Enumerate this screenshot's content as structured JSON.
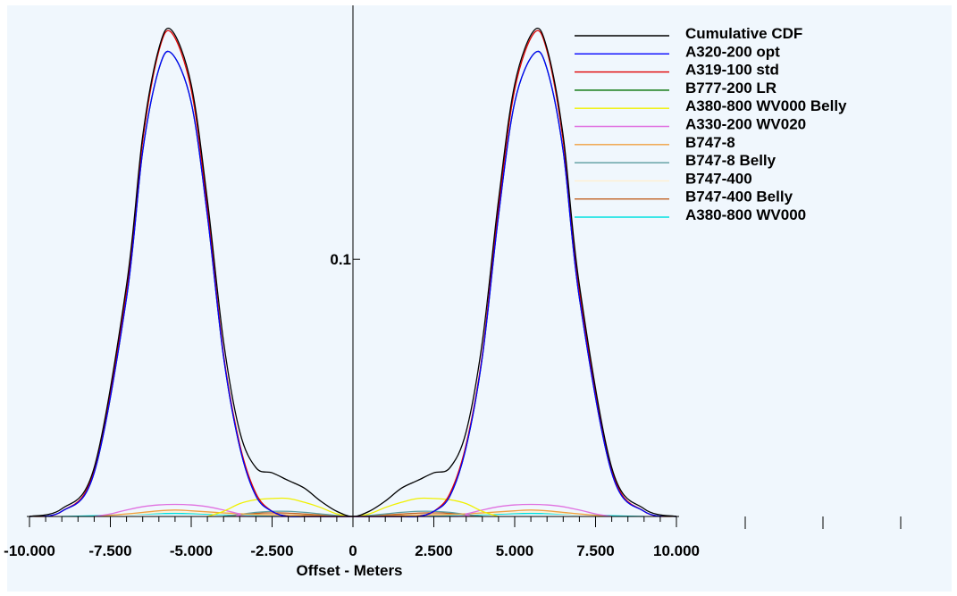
{
  "chart_data": {
    "type": "line",
    "title": "",
    "xlabel": "Offset - Meters",
    "ylabel": "",
    "xlim": [
      -10.5,
      10.5
    ],
    "ylim": [
      0,
      0.19
    ],
    "x_tick_labels": [
      "-10.000",
      "-7.500",
      "-5.000",
      "-2.500",
      "0",
      "2.500",
      "5.000",
      "7.500",
      "10.000"
    ],
    "x_tick_values": [
      -10,
      -7.5,
      -5,
      -2.5,
      0,
      2.5,
      5,
      7.5,
      10
    ],
    "y_tick_labels": [
      "0.1"
    ],
    "y_tick_values": [
      0.1
    ],
    "legend_position": "top-right",
    "series": [
      {
        "name": "Cumulative CDF",
        "color": "#000000",
        "x": [
          -10,
          -9,
          -8,
          -7,
          -6.5,
          -6,
          -5.6,
          -5,
          -4.5,
          -4,
          -3.5,
          -3,
          -2.5,
          -2,
          -1.5,
          -1,
          -0.5,
          0,
          0.5,
          1,
          1.5,
          2,
          2.5,
          3,
          3.5,
          4,
          4.5,
          5,
          5.6,
          6,
          6.5,
          7,
          8,
          9,
          10
        ],
        "y": [
          0.0,
          0.003,
          0.019,
          0.09,
          0.148,
          0.182,
          0.189,
          0.168,
          0.123,
          0.068,
          0.033,
          0.019,
          0.017,
          0.014,
          0.011,
          0.006,
          0.002,
          0.0,
          0.002,
          0.006,
          0.011,
          0.014,
          0.017,
          0.019,
          0.033,
          0.068,
          0.123,
          0.168,
          0.189,
          0.182,
          0.148,
          0.09,
          0.019,
          0.003,
          0.0
        ]
      },
      {
        "name": "A320-200 opt",
        "color": "#0000FF",
        "x": [
          -10,
          -9,
          -8,
          -7,
          -6.5,
          -6,
          -5.6,
          -5,
          -4.5,
          -4,
          -3.5,
          -3,
          -2.5,
          -2,
          -1.5,
          -1,
          -0.5,
          0,
          0.5,
          1,
          1.5,
          2,
          2.5,
          3,
          3.5,
          4,
          4.5,
          5,
          5.6,
          6,
          6.5,
          7,
          8,
          9,
          10
        ],
        "y": [
          0.0,
          0.002,
          0.017,
          0.085,
          0.142,
          0.174,
          0.18,
          0.161,
          0.117,
          0.062,
          0.027,
          0.008,
          0.002,
          0.0,
          0.0,
          0.0,
          0.0,
          0.0,
          0.0,
          0.0,
          0.0,
          0.0,
          0.002,
          0.008,
          0.027,
          0.062,
          0.117,
          0.161,
          0.18,
          0.174,
          0.142,
          0.085,
          0.017,
          0.002,
          0.0
        ]
      },
      {
        "name": "A319-100 std",
        "color": "#E00000",
        "x": [
          -10,
          -9,
          -8,
          -7,
          -6.5,
          -6,
          -5.6,
          -5,
          -4.5,
          -4,
          -3.5,
          -3,
          -2.5,
          -2,
          -1.5,
          -1,
          -0.5,
          0,
          0.5,
          1,
          1.5,
          2,
          2.5,
          3,
          3.5,
          4,
          4.5,
          5,
          5.6,
          6,
          6.5,
          7,
          8,
          9,
          10
        ],
        "y": [
          0.0,
          0.002,
          0.018,
          0.088,
          0.146,
          0.181,
          0.188,
          0.166,
          0.12,
          0.063,
          0.028,
          0.009,
          0.002,
          0.0,
          0.0,
          0.0,
          0.0,
          0.0,
          0.0,
          0.0,
          0.0,
          0.0,
          0.002,
          0.009,
          0.028,
          0.063,
          0.12,
          0.166,
          0.188,
          0.181,
          0.146,
          0.088,
          0.018,
          0.002,
          0.0
        ]
      },
      {
        "name": "B777-200 LR",
        "color": "#007000",
        "x": [
          -10,
          -9,
          -8,
          -7,
          -6.5,
          -6,
          -5.6,
          -5,
          -4.5,
          -4,
          -3.5,
          -3,
          -2.5,
          -2,
          -1.5,
          -1,
          -0.5,
          0,
          0.5,
          1,
          1.5,
          2,
          2.5,
          3,
          3.5,
          4,
          4.5,
          5,
          5.6,
          6,
          6.5,
          7,
          8,
          9,
          10
        ],
        "y": [
          0.0,
          0.002,
          0.017,
          0.085,
          0.142,
          0.174,
          0.18,
          0.161,
          0.117,
          0.062,
          0.027,
          0.008,
          0.002,
          0.0,
          0.0,
          0.0,
          0.0,
          0.0,
          0.0,
          0.0,
          0.0,
          0.0,
          0.002,
          0.008,
          0.027,
          0.062,
          0.117,
          0.161,
          0.18,
          0.174,
          0.142,
          0.085,
          0.017,
          0.002,
          0.0
        ]
      },
      {
        "name": "A380-800 WV000 Belly",
        "color": "#F0F000",
        "x": [
          -4.5,
          -4,
          -3.5,
          -3,
          -2.5,
          -2,
          -1.5,
          -1,
          -0.5,
          0,
          0.5,
          1,
          1.5,
          2,
          2.5,
          3,
          3.5,
          4,
          4.5
        ],
        "y": [
          0.0,
          0.002,
          0.005,
          0.0065,
          0.007,
          0.007,
          0.0055,
          0.0035,
          0.001,
          0.0,
          0.001,
          0.0035,
          0.0055,
          0.007,
          0.007,
          0.0065,
          0.005,
          0.002,
          0.0
        ]
      },
      {
        "name": "A330-200 WV020",
        "color": "#E070E0",
        "x": [
          -8,
          -7.5,
          -7,
          -6.5,
          -6,
          -5.5,
          -5,
          -4.5,
          -4,
          -3.5,
          -3,
          3,
          3.5,
          4,
          4.5,
          5,
          5.5,
          6,
          6.5,
          7,
          7.5,
          8
        ],
        "y": [
          0.0,
          0.001,
          0.0025,
          0.0038,
          0.0045,
          0.0047,
          0.0045,
          0.0038,
          0.0025,
          0.001,
          0.0,
          0.0,
          0.001,
          0.0025,
          0.0038,
          0.0045,
          0.0047,
          0.0045,
          0.0038,
          0.0025,
          0.001,
          0.0
        ]
      },
      {
        "name": "B747-8",
        "color": "#F0A040",
        "x": [
          -8,
          -7,
          -6,
          -5.5,
          -5,
          -4,
          -3,
          -2,
          -1,
          0,
          1,
          2,
          3,
          4,
          5,
          5.5,
          6,
          7,
          8
        ],
        "y": [
          0.0,
          0.001,
          0.0022,
          0.0025,
          0.0022,
          0.0014,
          0.0008,
          0.0006,
          0.0003,
          0.0,
          0.0003,
          0.0006,
          0.0008,
          0.0014,
          0.0022,
          0.0025,
          0.0022,
          0.001,
          0.0
        ]
      },
      {
        "name": "B747-8 Belly",
        "color": "#5A9CA0",
        "x": [
          -4,
          -3.5,
          -3,
          -2.5,
          -2,
          -1.5,
          -1,
          -0.5,
          0,
          0.5,
          1,
          1.5,
          2,
          2.5,
          3,
          3.5,
          4
        ],
        "y": [
          0.0,
          0.0008,
          0.0016,
          0.002,
          0.002,
          0.0016,
          0.001,
          0.0004,
          0.0,
          0.0004,
          0.001,
          0.0016,
          0.002,
          0.002,
          0.0016,
          0.0008,
          0.0
        ]
      },
      {
        "name": "B747-400",
        "color": "#FFF0D0",
        "x": [
          -8,
          -6,
          -5.5,
          -4,
          -2,
          0,
          2,
          4,
          5.5,
          6,
          8
        ],
        "y": [
          0.0,
          0.0015,
          0.0017,
          0.001,
          0.0004,
          0.0,
          0.0004,
          0.001,
          0.0017,
          0.0015,
          0.0
        ]
      },
      {
        "name": "B747-400 Belly",
        "color": "#C06020",
        "x": [
          -4,
          -3,
          -2.5,
          -2,
          -1,
          0,
          1,
          2,
          2.5,
          3,
          4
        ],
        "y": [
          0.0,
          0.0012,
          0.0014,
          0.0013,
          0.0006,
          0.0,
          0.0006,
          0.0013,
          0.0014,
          0.0012,
          0.0
        ]
      },
      {
        "name": "A380-800 WV000",
        "color": "#00E0E0",
        "x": [
          -9,
          -8,
          -7,
          -6,
          -5.5,
          -5,
          -4,
          -3,
          -2,
          -1,
          0,
          1,
          2,
          3,
          4,
          5,
          5.5,
          6,
          7,
          8,
          9
        ],
        "y": [
          0.0,
          0.0003,
          0.0008,
          0.0011,
          0.0012,
          0.0011,
          0.0007,
          0.0004,
          0.0003,
          0.0002,
          0.0,
          0.0002,
          0.0003,
          0.0004,
          0.0007,
          0.0011,
          0.0012,
          0.0011,
          0.0008,
          0.0003,
          0.0
        ]
      }
    ]
  }
}
